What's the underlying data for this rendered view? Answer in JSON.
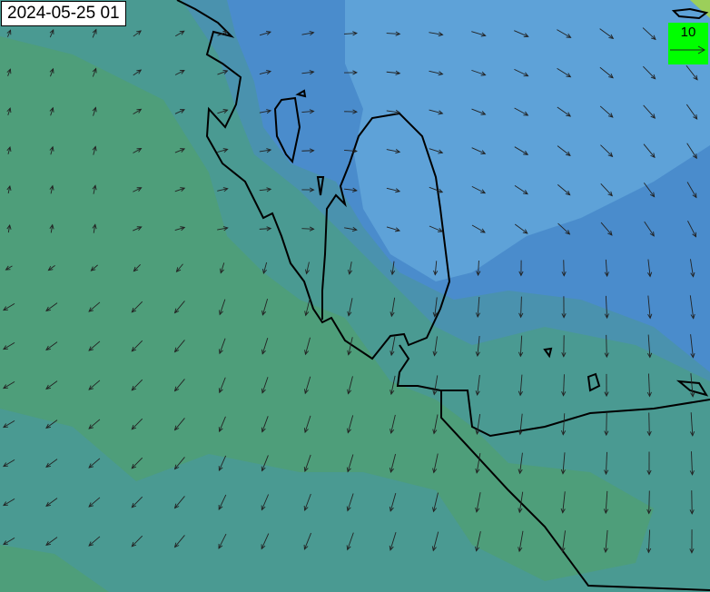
{
  "map": {
    "timestamp": "2024-05-25 01",
    "legend": {
      "reference_value": "10",
      "background_color": "#00ff00"
    },
    "colors": {
      "low_speed": "#4e9e78",
      "mid_speed": "#4a9a96",
      "high_speed": "#5b9bd5",
      "peak_speed": "#4a88c8",
      "coastline": "#000000",
      "arrow": "#222222"
    }
  }
}
